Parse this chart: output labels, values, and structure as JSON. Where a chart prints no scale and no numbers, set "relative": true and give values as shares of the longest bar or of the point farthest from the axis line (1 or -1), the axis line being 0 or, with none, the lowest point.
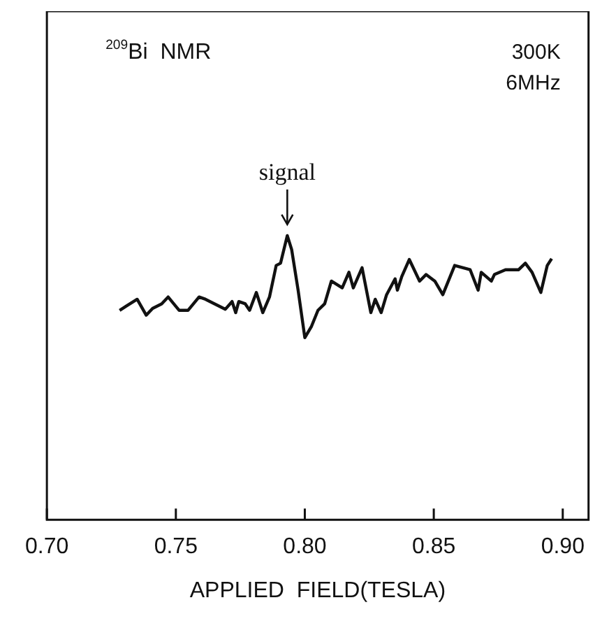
{
  "chart_data": {
    "type": "line",
    "relative": true,
    "xlabel": "APPLIED  FIELD(TESLA)",
    "xlim": [
      0.7,
      0.91
    ],
    "xticks": [
      {
        "value": 0.7,
        "label": "0.70"
      },
      {
        "value": 0.75,
        "label": "0.75"
      },
      {
        "value": 0.8,
        "label": "0.80"
      },
      {
        "value": 0.85,
        "label": "0.85"
      },
      {
        "value": 0.9,
        "label": "0.90"
      }
    ],
    "grid": false,
    "legend": false,
    "marker": "none",
    "line_style": "solid",
    "annotations": [
      "$^{209}$Bi  NMR",
      "300K",
      "6MHz",
      {
        "text": "signal",
        "x": 0.7932,
        "y": 1
      }
    ],
    "series": [
      {
        "color": "#111111",
        "x": [
          0.7282,
          0.7308,
          0.735,
          0.7385,
          0.741,
          0.7445,
          0.747,
          0.7513,
          0.7547,
          0.759,
          0.7615,
          0.765,
          0.7692,
          0.7718,
          0.7732,
          0.7744,
          0.7769,
          0.7786,
          0.7812,
          0.7837,
          0.7863,
          0.7889,
          0.7906,
          0.7932,
          0.7949,
          0.7974,
          0.8,
          0.8026,
          0.8051,
          0.8077,
          0.8103,
          0.8145,
          0.8171,
          0.8188,
          0.8222,
          0.8256,
          0.8273,
          0.8296,
          0.8317,
          0.835,
          0.8359,
          0.8376,
          0.8405,
          0.8445,
          0.847,
          0.8504,
          0.8535,
          0.8581,
          0.8641,
          0.8672,
          0.8684,
          0.8723,
          0.8735,
          0.8778,
          0.8829,
          0.8855,
          0.8881,
          0.8915,
          0.894,
          0.8957
        ],
        "values": [
          0.737,
          0.752,
          0.776,
          0.72,
          0.744,
          0.76,
          0.784,
          0.737,
          0.737,
          0.784,
          0.776,
          0.76,
          0.741,
          0.768,
          0.729,
          0.768,
          0.76,
          0.737,
          0.8,
          0.729,
          0.784,
          0.895,
          0.903,
          1,
          0.951,
          0.808,
          0.641,
          0.681,
          0.737,
          0.76,
          0.84,
          0.816,
          0.871,
          0.816,
          0.887,
          0.729,
          0.776,
          0.729,
          0.792,
          0.848,
          0.808,
          0.856,
          0.916,
          0.84,
          0.863,
          0.84,
          0.792,
          0.895,
          0.88,
          0.808,
          0.871,
          0.84,
          0.863,
          0.88,
          0.88,
          0.903,
          0.871,
          0.8,
          0.895,
          0.919
        ]
      }
    ]
  }
}
